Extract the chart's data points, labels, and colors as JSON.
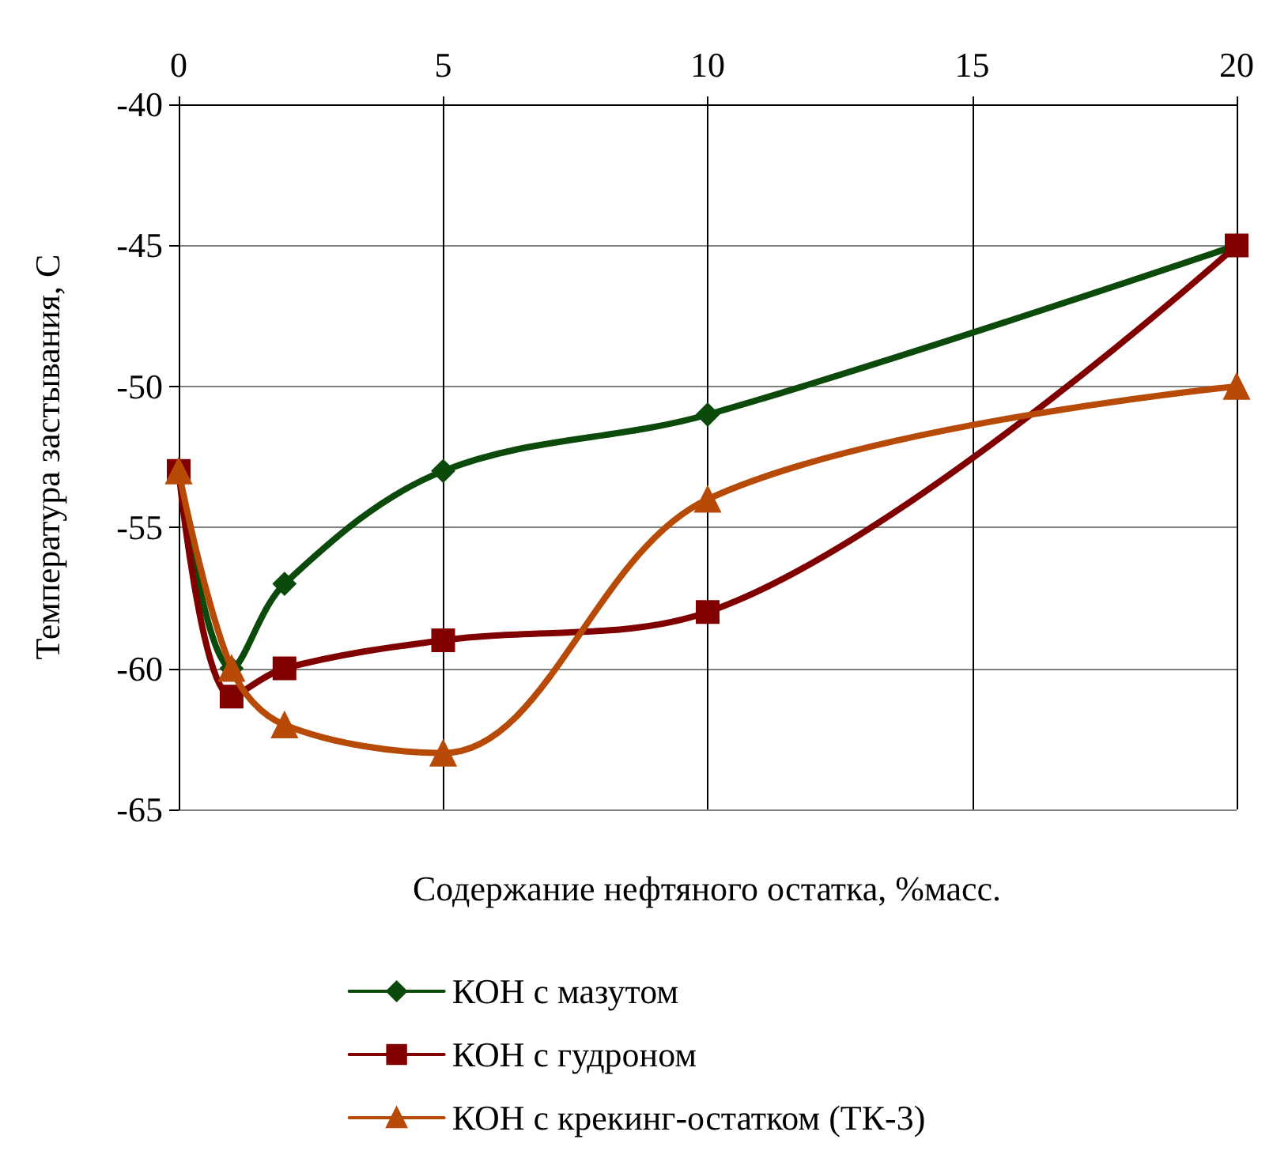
{
  "chart_data": {
    "type": "line",
    "xlabel": "Содержание нефтяного остатка, %масс.",
    "ylabel": "Температура застывания, С",
    "x": [
      0,
      1,
      2,
      5,
      10,
      20
    ],
    "series": [
      {
        "name": "КОН с мазутом",
        "color": "#0b4a0b",
        "marker": "diamond",
        "values": [
          -53,
          -60,
          -57,
          -53,
          -51,
          -45
        ]
      },
      {
        "name": "КОН с гудроном",
        "color": "#800000",
        "marker": "square",
        "values": [
          -53,
          -61,
          -60,
          -59,
          -58,
          -45
        ]
      },
      {
        "name": "КОН с крекинг-остатком (ТК-3)",
        "color": "#b84a08",
        "marker": "triangle",
        "values": [
          -53,
          -60,
          -62,
          -63,
          -54,
          -50
        ]
      }
    ],
    "xlim": [
      0,
      20
    ],
    "xticks": [
      0,
      5,
      10,
      15,
      20
    ],
    "ylim": [
      -65,
      -40
    ],
    "yticks": [
      -65,
      -60,
      -55,
      -50,
      -45,
      -40
    ],
    "grid": true,
    "legend": "bottom"
  }
}
